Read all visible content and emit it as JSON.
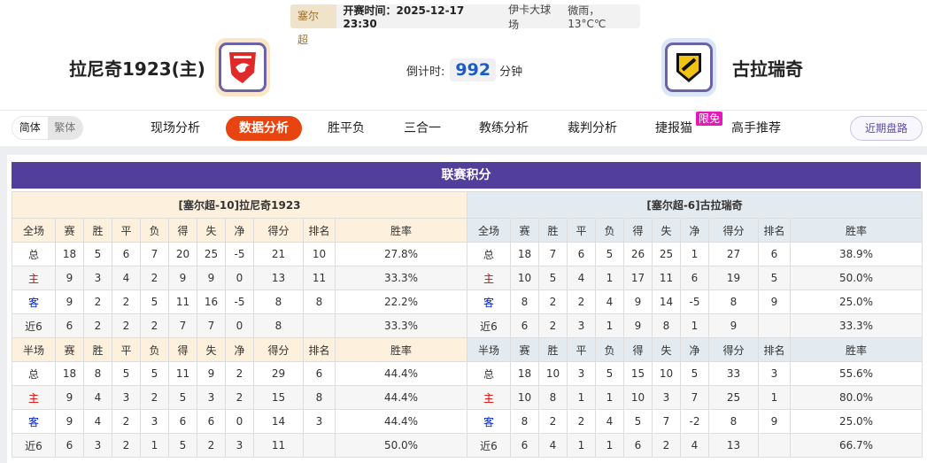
{
  "header": {
    "league": "塞尔超",
    "time_label": "开赛时间：2025-12-17 23:30",
    "venue": "伊卡大球场",
    "weather": "微雨， 13°C℃"
  },
  "home_team": {
    "name": "拉尼奇1923(主)",
    "logo": "shield-eagle-logo",
    "logo_color": "#e02a2a"
  },
  "away_team": {
    "name": "古拉瑞奇",
    "logo": "black-yellow-shield-logo",
    "logo_color": "#f3c313"
  },
  "countdown": {
    "label": "倒计时:",
    "value": "992",
    "unit": "分钟"
  },
  "lang": {
    "simplified": "简体",
    "traditional": "繁体"
  },
  "nav": [
    {
      "label": "现场分析"
    },
    {
      "label": "数据分析",
      "active": true
    },
    {
      "label": "胜平负"
    },
    {
      "label": "三合一"
    },
    {
      "label": "教练分析"
    },
    {
      "label": "裁判分析"
    },
    {
      "label": "捷报猫"
    },
    {
      "label": "高手推荐"
    }
  ],
  "nav_badge": "限免",
  "recent_button": "近期盘路",
  "colors": {
    "accent": "#e8440f",
    "title_bar": "#523f9b",
    "home_text": "#dd0000",
    "away_text": "#0020c8"
  },
  "standings": {
    "title": "联赛积分",
    "columns": [
      "赛",
      "胜",
      "平",
      "负",
      "得",
      "失",
      "净",
      "得分",
      "排名",
      "胜率"
    ],
    "full_label": "全场",
    "half_label": "半场",
    "tables": [
      {
        "team_header": "[塞尔超-10]拉尼奇1923",
        "full": [
          [
            "总",
            "18",
            "5",
            "6",
            "7",
            "20",
            "25",
            "-5",
            "21",
            "10",
            "27.8%"
          ],
          [
            "主",
            "9",
            "3",
            "4",
            "2",
            "9",
            "9",
            "0",
            "13",
            "11",
            "33.3%"
          ],
          [
            "客",
            "9",
            "2",
            "2",
            "5",
            "11",
            "16",
            "-5",
            "8",
            "8",
            "22.2%"
          ],
          [
            "近6",
            "6",
            "2",
            "2",
            "2",
            "7",
            "7",
            "0",
            "8",
            "",
            "33.3%"
          ]
        ],
        "half": [
          [
            "总",
            "18",
            "8",
            "5",
            "5",
            "11",
            "9",
            "2",
            "29",
            "6",
            "44.4%"
          ],
          [
            "主",
            "9",
            "4",
            "3",
            "2",
            "5",
            "3",
            "2",
            "15",
            "8",
            "44.4%"
          ],
          [
            "客",
            "9",
            "4",
            "2",
            "3",
            "6",
            "6",
            "0",
            "14",
            "3",
            "44.4%"
          ],
          [
            "近6",
            "6",
            "3",
            "2",
            "1",
            "5",
            "2",
            "3",
            "11",
            "",
            "50.0%"
          ]
        ]
      },
      {
        "team_header": "[塞尔超-6]古拉瑞奇",
        "full": [
          [
            "总",
            "18",
            "7",
            "6",
            "5",
            "26",
            "25",
            "1",
            "27",
            "6",
            "38.9%"
          ],
          [
            "主",
            "10",
            "5",
            "4",
            "1",
            "17",
            "11",
            "6",
            "19",
            "5",
            "50.0%"
          ],
          [
            "客",
            "8",
            "2",
            "2",
            "4",
            "9",
            "14",
            "-5",
            "8",
            "9",
            "25.0%"
          ],
          [
            "近6",
            "6",
            "2",
            "3",
            "1",
            "9",
            "8",
            "1",
            "9",
            "",
            "33.3%"
          ]
        ],
        "half": [
          [
            "总",
            "18",
            "10",
            "3",
            "5",
            "15",
            "10",
            "5",
            "33",
            "3",
            "55.6%"
          ],
          [
            "主",
            "10",
            "8",
            "1",
            "1",
            "10",
            "3",
            "7",
            "25",
            "1",
            "80.0%"
          ],
          [
            "客",
            "8",
            "2",
            "2",
            "4",
            "5",
            "7",
            "-2",
            "8",
            "9",
            "25.0%"
          ],
          [
            "近6",
            "6",
            "4",
            "1",
            "1",
            "6",
            "2",
            "4",
            "13",
            "",
            "66.7%"
          ]
        ]
      }
    ]
  }
}
